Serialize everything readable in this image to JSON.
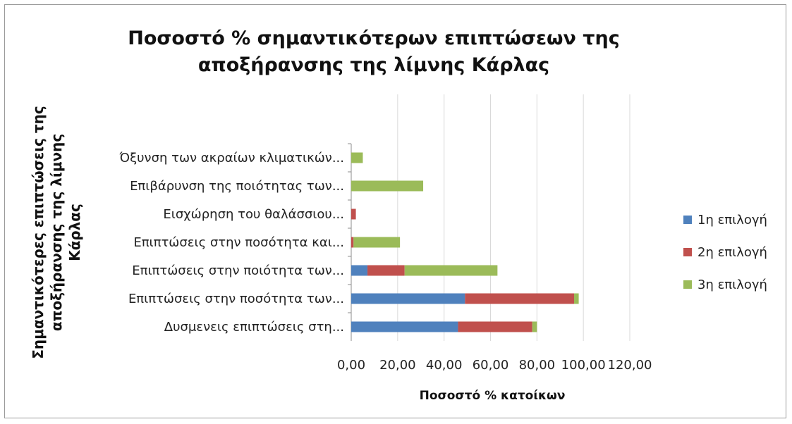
{
  "chart_data": {
    "type": "bar",
    "orientation": "horizontal",
    "stacked": true,
    "title": "Ποσοστό % σημαντικότερων επιπτώσεων της αποξήρανσης της λίμνης Κάρλας",
    "xlabel": "Ποσοστό % κατοίκων",
    "ylabel": "Σημαντικότερες επιπτώσεις της αποξήρανσης της λίμνης Κάρλας",
    "categories": [
      "Δυσμενεις επιπτώσεις στη...",
      "Επιπτώσεις στην ποσότητα των...",
      "Επιπτώσεις στην ποιότητα των...",
      "Επιπτώσεις στην ποσότητα και...",
      "Εισχώρηση του θαλάσσιου...",
      "Επιβάρυνση της ποιότητας των...",
      "Όξυνση των ακραίων κλιματικών..."
    ],
    "series": [
      {
        "name": "1η επιλογή",
        "color": "#4f81bd",
        "values": [
          46,
          49,
          7,
          0,
          0,
          0,
          0
        ]
      },
      {
        "name": "2η επιλογή",
        "color": "#c0504d",
        "values": [
          32,
          47,
          16,
          1,
          2,
          0,
          0
        ]
      },
      {
        "name": "3η επιλογή",
        "color": "#9bbb59",
        "values": [
          2,
          2,
          40,
          20,
          0,
          31,
          5
        ]
      }
    ],
    "xlim": [
      0,
      120
    ],
    "xticks": [
      "0,00",
      "20,00",
      "40,00",
      "60,00",
      "80,00",
      "100,00",
      "120,00"
    ],
    "grid": true,
    "legend_position": "right"
  }
}
